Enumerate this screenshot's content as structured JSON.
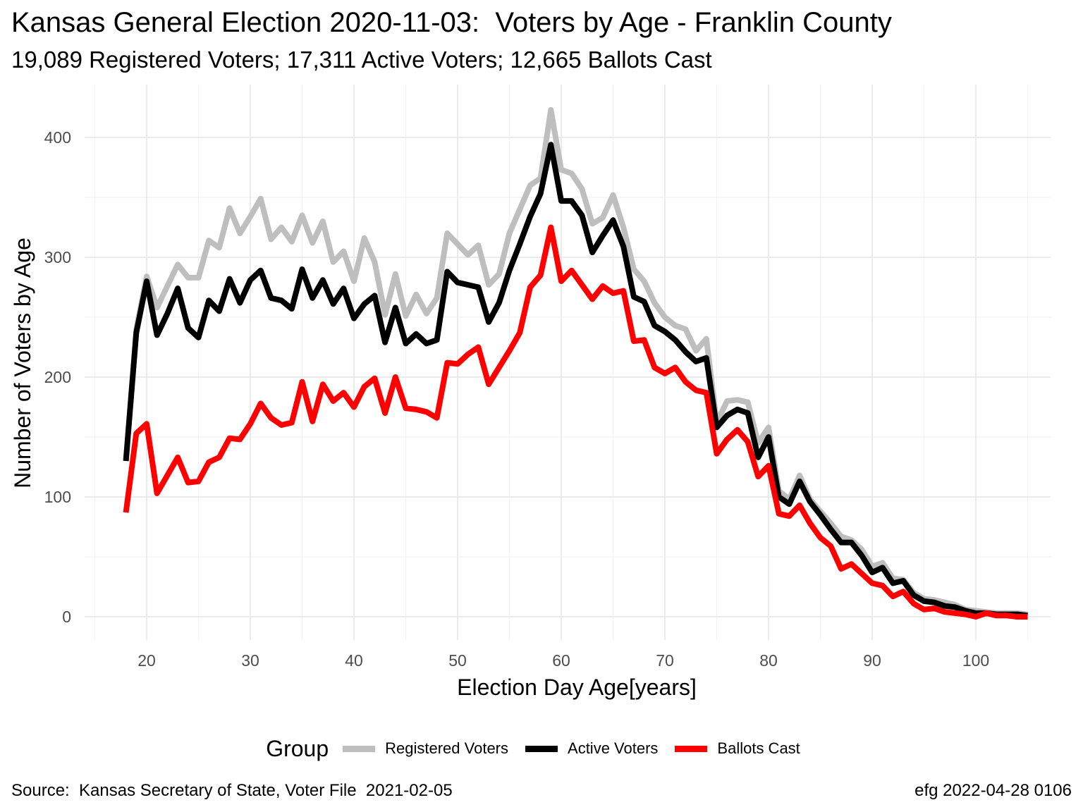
{
  "title": "Kansas General Election 2020-11-03:  Voters by Age - Franklin County",
  "subtitle": "19,089 Registered Voters; 17,311 Active Voters; 12,665 Ballots Cast",
  "caption_left": "Source:  Kansas Secretary of State, Voter File  2021-02-05",
  "caption_right": "efg 2022-04-28 0106",
  "legend": {
    "title": "Group",
    "items": [
      {
        "label": "Registered Voters",
        "color": "#BEBEBE"
      },
      {
        "label": "Active Voters",
        "color": "#000000"
      },
      {
        "label": "Ballots Cast",
        "color": "#FF0000"
      }
    ]
  },
  "chart_data": {
    "type": "line",
    "xlabel": "Election Day Age[years]",
    "ylabel": "Number of Voters by Age",
    "xlim": [
      18,
      105
    ],
    "ylim": [
      0,
      420
    ],
    "xticks": [
      20,
      30,
      40,
      50,
      60,
      70,
      80,
      90,
      100
    ],
    "yticks": [
      0,
      100,
      200,
      300,
      400
    ],
    "grid": true,
    "legend_position": "bottom",
    "x": [
      18,
      19,
      20,
      21,
      22,
      23,
      24,
      25,
      26,
      27,
      28,
      29,
      30,
      31,
      32,
      33,
      34,
      35,
      36,
      37,
      38,
      39,
      40,
      41,
      42,
      43,
      44,
      45,
      46,
      47,
      48,
      49,
      50,
      51,
      52,
      53,
      54,
      55,
      56,
      57,
      58,
      59,
      60,
      61,
      62,
      63,
      64,
      65,
      66,
      67,
      68,
      69,
      70,
      71,
      72,
      73,
      74,
      75,
      76,
      77,
      78,
      79,
      80,
      81,
      82,
      83,
      84,
      85,
      86,
      87,
      88,
      89,
      90,
      91,
      92,
      93,
      94,
      95,
      96,
      97,
      98,
      99,
      100,
      101,
      102,
      103,
      104,
      105
    ],
    "series": [
      {
        "name": "Registered Voters",
        "color": "#BEBEBE",
        "values": [
          130,
          240,
          284,
          258,
          276,
          294,
          283,
          283,
          314,
          308,
          341,
          320,
          334,
          349,
          315,
          325,
          313,
          335,
          312,
          330,
          296,
          305,
          280,
          316,
          296,
          252,
          286,
          251,
          269,
          253,
          266,
          320,
          311,
          302,
          310,
          277,
          286,
          320,
          340,
          360,
          366,
          423,
          373,
          370,
          357,
          328,
          333,
          352,
          325,
          290,
          280,
          262,
          250,
          243,
          240,
          222,
          232,
          162,
          180,
          181,
          179,
          145,
          158,
          105,
          98,
          118,
          98,
          88,
          78,
          67,
          64,
          56,
          42,
          45,
          32,
          31,
          20,
          15,
          14,
          12,
          10,
          6,
          5,
          4,
          3,
          3,
          3,
          2
        ]
      },
      {
        "name": "Active Voters",
        "color": "#000000",
        "values": [
          130,
          237,
          280,
          235,
          253,
          274,
          241,
          233,
          264,
          255,
          282,
          262,
          281,
          289,
          266,
          264,
          257,
          290,
          266,
          281,
          261,
          274,
          249,
          261,
          268,
          229,
          258,
          228,
          236,
          228,
          231,
          288,
          279,
          277,
          275,
          246,
          262,
          289,
          311,
          334,
          353,
          394,
          347,
          347,
          335,
          304,
          318,
          331,
          309,
          267,
          263,
          243,
          238,
          231,
          221,
          213,
          216,
          158,
          168,
          173,
          170,
          133,
          150,
          100,
          94,
          113,
          96,
          85,
          73,
          62,
          62,
          51,
          37,
          41,
          28,
          30,
          18,
          13,
          12,
          9,
          8,
          5,
          3,
          3,
          2,
          2,
          2,
          1
        ]
      },
      {
        "name": "Ballots Cast",
        "color": "#FF0000",
        "values": [
          87,
          153,
          161,
          103,
          118,
          133,
          112,
          113,
          129,
          133,
          149,
          148,
          161,
          178,
          166,
          160,
          162,
          196,
          163,
          194,
          180,
          187,
          175,
          192,
          199,
          170,
          200,
          174,
          173,
          171,
          166,
          212,
          211,
          219,
          225,
          194,
          208,
          222,
          237,
          275,
          285,
          325,
          280,
          289,
          277,
          265,
          276,
          270,
          272,
          230,
          231,
          208,
          203,
          208,
          196,
          189,
          187,
          136,
          148,
          156,
          146,
          117,
          126,
          86,
          84,
          93,
          78,
          66,
          59,
          40,
          44,
          36,
          28,
          26,
          17,
          21,
          11,
          6,
          7,
          4,
          3,
          2,
          0,
          3,
          1,
          1,
          0,
          0
        ]
      }
    ]
  }
}
